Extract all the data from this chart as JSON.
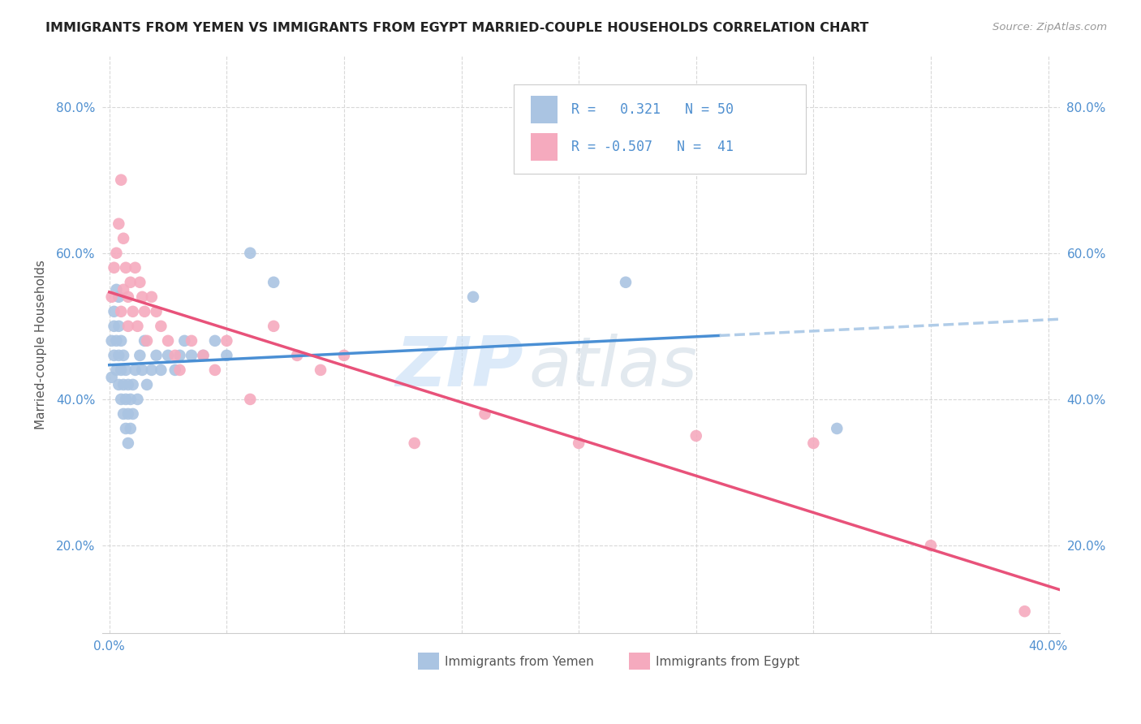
{
  "title": "IMMIGRANTS FROM YEMEN VS IMMIGRANTS FROM EGYPT MARRIED-COUPLE HOUSEHOLDS CORRELATION CHART",
  "source": "Source: ZipAtlas.com",
  "xlim": [
    -0.003,
    0.405
  ],
  "ylim": [
    0.08,
    0.87
  ],
  "ylabel_label": "Married-couple Households",
  "yticks": [
    0.2,
    0.4,
    0.6,
    0.8
  ],
  "ytick_labels": [
    "20.0%",
    "40.0%",
    "60.0%",
    "80.0%"
  ],
  "xtick_labels_bottom": [
    "0.0%",
    "",
    "",
    "",
    "",
    "",
    "",
    "",
    "",
    "",
    "40.0%"
  ],
  "legend_label1": "Immigrants from Yemen",
  "legend_label2": "Immigrants from Egypt",
  "R1": 0.321,
  "N1": 50,
  "R2": -0.507,
  "N2": 41,
  "color_yemen": "#aac4e2",
  "color_egypt": "#f5aabe",
  "color_line_yemen_solid": "#4a8fd4",
  "color_line_yemen_dash": "#b0cce8",
  "color_line_egypt": "#e8527a",
  "yemen_x": [
    0.001,
    0.001,
    0.002,
    0.002,
    0.002,
    0.003,
    0.003,
    0.003,
    0.004,
    0.004,
    0.004,
    0.004,
    0.005,
    0.005,
    0.005,
    0.006,
    0.006,
    0.006,
    0.007,
    0.007,
    0.007,
    0.008,
    0.008,
    0.008,
    0.009,
    0.009,
    0.01,
    0.01,
    0.011,
    0.012,
    0.013,
    0.014,
    0.015,
    0.016,
    0.018,
    0.02,
    0.022,
    0.025,
    0.028,
    0.03,
    0.032,
    0.035,
    0.04,
    0.045,
    0.05,
    0.06,
    0.07,
    0.155,
    0.22,
    0.31
  ],
  "yemen_y": [
    0.43,
    0.48,
    0.5,
    0.46,
    0.52,
    0.44,
    0.48,
    0.55,
    0.42,
    0.46,
    0.5,
    0.54,
    0.4,
    0.44,
    0.48,
    0.38,
    0.42,
    0.46,
    0.36,
    0.4,
    0.44,
    0.34,
    0.38,
    0.42,
    0.36,
    0.4,
    0.38,
    0.42,
    0.44,
    0.4,
    0.46,
    0.44,
    0.48,
    0.42,
    0.44,
    0.46,
    0.44,
    0.46,
    0.44,
    0.46,
    0.48,
    0.46,
    0.46,
    0.48,
    0.46,
    0.6,
    0.56,
    0.54,
    0.56,
    0.36
  ],
  "egypt_x": [
    0.001,
    0.002,
    0.003,
    0.004,
    0.005,
    0.005,
    0.006,
    0.006,
    0.007,
    0.008,
    0.008,
    0.009,
    0.01,
    0.011,
    0.012,
    0.013,
    0.014,
    0.015,
    0.016,
    0.018,
    0.02,
    0.022,
    0.025,
    0.028,
    0.03,
    0.035,
    0.04,
    0.045,
    0.05,
    0.06,
    0.07,
    0.08,
    0.09,
    0.1,
    0.13,
    0.16,
    0.2,
    0.25,
    0.3,
    0.35,
    0.39
  ],
  "egypt_y": [
    0.54,
    0.58,
    0.6,
    0.64,
    0.52,
    0.7,
    0.55,
    0.62,
    0.58,
    0.5,
    0.54,
    0.56,
    0.52,
    0.58,
    0.5,
    0.56,
    0.54,
    0.52,
    0.48,
    0.54,
    0.52,
    0.5,
    0.48,
    0.46,
    0.44,
    0.48,
    0.46,
    0.44,
    0.48,
    0.4,
    0.5,
    0.46,
    0.44,
    0.46,
    0.34,
    0.38,
    0.34,
    0.35,
    0.34,
    0.2,
    0.11
  ],
  "yemen_line_solid_end": 0.26,
  "yemen_line_dash_start": 0.26,
  "yemen_line_end": 0.41,
  "egypt_line_start": 0.0,
  "egypt_line_end": 0.41,
  "grid_color": "#d8d8d8",
  "tick_color": "#5090d0",
  "title_color": "#222222",
  "source_color": "#999999",
  "ylabel_color": "#555555"
}
